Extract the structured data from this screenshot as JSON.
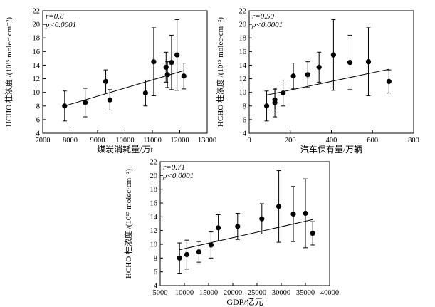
{
  "chart_data": [
    {
      "type": "scatter",
      "id": "coal",
      "xlabel": "煤炭消耗量/万t",
      "ylabel": "HCHO 柱浓度 /(10¹⁵ molec·cm⁻²)",
      "stat_r": "r=0.8",
      "stat_p": "p<0.0001",
      "xlim": [
        7000,
        13000
      ],
      "ylim": [
        4,
        22
      ],
      "xticks": [
        7000,
        8000,
        9000,
        10000,
        11000,
        12000,
        13000
      ],
      "yticks": [
        4,
        6,
        8,
        10,
        12,
        14,
        16,
        18,
        20,
        22
      ],
      "points": [
        {
          "x": 7800,
          "y": 8.0,
          "err": 2.2
        },
        {
          "x": 8550,
          "y": 8.5,
          "err": 2.1
        },
        {
          "x": 9300,
          "y": 11.6,
          "err": 1.7
        },
        {
          "x": 9450,
          "y": 8.9,
          "err": 1.5
        },
        {
          "x": 10750,
          "y": 9.9,
          "err": 1.9
        },
        {
          "x": 11050,
          "y": 14.5,
          "err": 5.0
        },
        {
          "x": 11500,
          "y": 13.7,
          "err": 2.2
        },
        {
          "x": 11550,
          "y": 12.6,
          "err": 1.9
        },
        {
          "x": 11700,
          "y": 14.4,
          "err": 4.0
        },
        {
          "x": 11900,
          "y": 15.5,
          "err": 5.2
        },
        {
          "x": 12150,
          "y": 12.4,
          "err": 1.9
        }
      ],
      "fit": {
        "x": [
          7800,
          12150
        ],
        "y": [
          8.0,
          13.2
        ]
      }
    },
    {
      "type": "scatter",
      "id": "vehicles",
      "xlabel": "汽车保有量/万辆",
      "ylabel": "HCHO 柱浓度 /(10¹⁵ molec·cm⁻²)",
      "stat_r": "r=0.59",
      "stat_p": "p<0.0001",
      "xlim": [
        0,
        800
      ],
      "ylim": [
        4,
        22
      ],
      "xticks": [
        0,
        200,
        400,
        600,
        800
      ],
      "yticks": [
        4,
        6,
        8,
        10,
        12,
        14,
        16,
        18,
        20,
        22
      ],
      "points": [
        {
          "x": 85,
          "y": 8.0,
          "err": 2.2
        },
        {
          "x": 125,
          "y": 8.9,
          "err": 1.5
        },
        {
          "x": 125,
          "y": 8.5,
          "err": 2.1
        },
        {
          "x": 165,
          "y": 9.9,
          "err": 1.9
        },
        {
          "x": 215,
          "y": 12.4,
          "err": 1.9
        },
        {
          "x": 285,
          "y": 12.6,
          "err": 1.9
        },
        {
          "x": 340,
          "y": 13.7,
          "err": 2.2
        },
        {
          "x": 410,
          "y": 15.5,
          "err": 5.2
        },
        {
          "x": 490,
          "y": 14.4,
          "err": 4.0
        },
        {
          "x": 580,
          "y": 14.5,
          "err": 5.0
        },
        {
          "x": 680,
          "y": 11.6,
          "err": 1.7
        }
      ],
      "fit": {
        "x": [
          85,
          680
        ],
        "y": [
          9.6,
          13.4
        ]
      }
    },
    {
      "type": "scatter",
      "id": "gdp",
      "xlabel": "GDP/亿元",
      "ylabel": "HCHO 柱浓度 /(10¹⁵ molec·cm⁻²)",
      "stat_r": "r=0.71",
      "stat_p": "p<0.0001",
      "xlim": [
        5000,
        40000
      ],
      "ylim": [
        4,
        22
      ],
      "xticks": [
        5000,
        10000,
        15000,
        20000,
        25000,
        30000,
        35000,
        40000
      ],
      "yticks": [
        4,
        6,
        8,
        10,
        12,
        14,
        16,
        18,
        20,
        22
      ],
      "points": [
        {
          "x": 9000,
          "y": 8.0,
          "err": 2.2
        },
        {
          "x": 10500,
          "y": 8.5,
          "err": 2.1
        },
        {
          "x": 13000,
          "y": 8.9,
          "err": 1.5
        },
        {
          "x": 15500,
          "y": 9.9,
          "err": 1.9
        },
        {
          "x": 17000,
          "y": 12.4,
          "err": 1.9
        },
        {
          "x": 21000,
          "y": 12.6,
          "err": 1.9
        },
        {
          "x": 26000,
          "y": 13.7,
          "err": 2.2
        },
        {
          "x": 29500,
          "y": 15.5,
          "err": 5.2
        },
        {
          "x": 32500,
          "y": 14.4,
          "err": 4.0
        },
        {
          "x": 35000,
          "y": 14.5,
          "err": 5.0
        },
        {
          "x": 36500,
          "y": 11.6,
          "err": 1.7
        }
      ],
      "fit": {
        "x": [
          9000,
          36500
        ],
        "y": [
          9.2,
          13.6
        ]
      }
    }
  ]
}
